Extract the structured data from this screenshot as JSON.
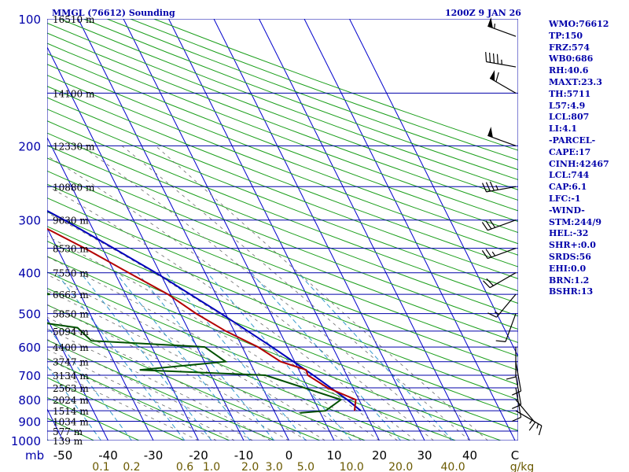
{
  "header": {
    "title": "MMGL (76612) Sounding",
    "valid_time": "1200Z  9 JAN 26"
  },
  "indices": [
    "WMO:76612",
    "TP:150",
    "FRZ:574",
    "WB0:686",
    "RH:40.6",
    "MAXT:23.3",
    "TH:5711",
    "L57:4.9",
    "LCL:807",
    "LI:4.1",
    "-PARCEL-",
    "CAPE:17",
    "CINH:42467",
    "LCL:744",
    "CAP:6.1",
    "LFC:-1",
    "-WIND-",
    "STM:244/9",
    "HEL:-32",
    "SHR+:0.0",
    "SRDS:56",
    "EHI:0.0",
    "BRN:1.2",
    "BSHR:13"
  ],
  "colors": {
    "isobar": "#0000aa",
    "isotherm": "#0000cc",
    "dry_adiabat": "#1a9e1a",
    "moist_adiabat": "#6a6a6a",
    "mixing_ratio": "#3399cc",
    "temperature": "#b30000",
    "dewpoint": "#005000",
    "parcel": "#0000bb",
    "wind": "#000000"
  },
  "chart_data": {
    "type": "skew-t",
    "title": "MMGL (76612) Sounding",
    "pressure_levels_hPa": [
      100,
      200,
      300,
      400,
      500,
      600,
      700,
      800,
      900,
      1000
    ],
    "pressure_labels": [
      "100",
      "200",
      "300",
      "400",
      "500",
      "600",
      "700",
      "800",
      "900",
      "1000"
    ],
    "pressure_unit_label": "mb",
    "temperature_ticks_C": [
      -50,
      -40,
      -30,
      -20,
      -10,
      0,
      10,
      20,
      30,
      40,
      50
    ],
    "temperature_tick_labels": [
      "-50",
      "-40",
      "-30",
      "-20",
      "-10",
      "0",
      "10",
      "20",
      "30",
      "40",
      "C"
    ],
    "mixing_ratio_ticks": [
      "0.1",
      "0.2",
      "0.6",
      "1.0",
      "2.0",
      "3.0",
      "5.0",
      "10.0",
      "20.0",
      "40.0"
    ],
    "mixing_ratio_unit": "g/kg",
    "height_labels": [
      {
        "p": 100,
        "text": "16510 m"
      },
      {
        "p": 150,
        "text": "14100 m"
      },
      {
        "p": 200,
        "text": "12330 m"
      },
      {
        "p": 250,
        "text": "10880 m"
      },
      {
        "p": 300,
        "text": "9630 m"
      },
      {
        "p": 350,
        "text": "8530 m"
      },
      {
        "p": 400,
        "text": "7550 m"
      },
      {
        "p": 450,
        "text": "6663 m"
      },
      {
        "p": 500,
        "text": "5850 m"
      },
      {
        "p": 550,
        "text": "5094 m"
      },
      {
        "p": 600,
        "text": "4400 m"
      },
      {
        "p": 650,
        "text": "3747 m"
      },
      {
        "p": 700,
        "text": "3134 m"
      },
      {
        "p": 750,
        "text": "2563 m"
      },
      {
        "p": 800,
        "text": "2024 m"
      },
      {
        "p": 850,
        "text": "1514 m"
      },
      {
        "p": 900,
        "text": "1034 m"
      },
      {
        "p": 950,
        "text": "577 m"
      },
      {
        "p": 1000,
        "text": "139 m"
      }
    ],
    "temperature_profile": [
      {
        "p": 100,
        "t": -71.4
      },
      {
        "p": 120,
        "t": -71.8
      },
      {
        "p": 150,
        "t": -76.4
      },
      {
        "p": 170,
        "t": -67.6
      },
      {
        "p": 200,
        "t": -58.4
      },
      {
        "p": 230,
        "t": -49.8
      },
      {
        "p": 250,
        "t": -45.5
      },
      {
        "p": 280,
        "t": -38.4
      },
      {
        "p": 300,
        "t": -32.9
      },
      {
        "p": 350,
        "t": -23.9
      },
      {
        "p": 400,
        "t": -16.9
      },
      {
        "p": 450,
        "t": -10.6
      },
      {
        "p": 500,
        "t": -6.5
      },
      {
        "p": 550,
        "t": -1.9
      },
      {
        "p": 600,
        "t": 3.5
      },
      {
        "p": 650,
        "t": 6.9
      },
      {
        "p": 680,
        "t": 11.6
      },
      {
        "p": 700,
        "t": 11.4
      },
      {
        "p": 750,
        "t": 14.4
      },
      {
        "p": 800,
        "t": 19.3
      },
      {
        "p": 850,
        "t": 17.8
      }
    ],
    "dewpoint_profile": [
      {
        "p": 100,
        "td": -112.7
      },
      {
        "p": 150,
        "td": -128.2
      },
      {
        "p": 170,
        "td": -123.5
      },
      {
        "p": 200,
        "td": -114.9
      },
      {
        "p": 220,
        "td": -103.2
      },
      {
        "p": 250,
        "td": -101.6
      },
      {
        "p": 280,
        "td": -85.2
      },
      {
        "p": 300,
        "td": -78.6
      },
      {
        "p": 320,
        "td": -70.9
      },
      {
        "p": 350,
        "td": -61.4
      },
      {
        "p": 370,
        "td": -44.2
      },
      {
        "p": 400,
        "td": -56.2
      },
      {
        "p": 420,
        "td": -44.3
      },
      {
        "p": 450,
        "td": -36.7
      },
      {
        "p": 460,
        "td": -60.9
      },
      {
        "p": 500,
        "td": -66.7
      },
      {
        "p": 520,
        "td": -44.4
      },
      {
        "p": 540,
        "td": -34.3
      },
      {
        "p": 580,
        "td": -32.7
      },
      {
        "p": 600,
        "td": -8.3
      },
      {
        "p": 650,
        "td": -5.3
      },
      {
        "p": 680,
        "td": -25.2
      },
      {
        "p": 700,
        "td": 2.0
      },
      {
        "p": 800,
        "td": 16.0
      },
      {
        "p": 850,
        "td": 11.4
      },
      {
        "p": 860,
        "td": 5.5
      }
    ],
    "parcel_profile": [
      {
        "p": 850,
        "t": 19.2
      },
      {
        "p": 800,
        "t": 17.4
      },
      {
        "p": 700,
        "t": 12.6
      },
      {
        "p": 600,
        "t": 6.6
      },
      {
        "p": 500,
        "t": -1.0
      },
      {
        "p": 400,
        "t": -10.9
      },
      {
        "p": 350,
        "t": -17.5
      },
      {
        "p": 300,
        "t": -25.3
      },
      {
        "p": 250,
        "t": -35.4
      },
      {
        "p": 200,
        "t": -48.0
      },
      {
        "p": 150,
        "t": -63.0
      },
      {
        "p": 125,
        "t": -71.6
      }
    ],
    "wind_barbs": [
      {
        "p": 110,
        "dir": 290,
        "spd": 55
      },
      {
        "p": 130,
        "dir": 280,
        "spd": 45
      },
      {
        "p": 150,
        "dir": 300,
        "spd": 60
      },
      {
        "p": 200,
        "dir": 290,
        "spd": 50
      },
      {
        "p": 250,
        "dir": 260,
        "spd": 35
      },
      {
        "p": 300,
        "dir": 250,
        "spd": 30
      },
      {
        "p": 350,
        "dir": 250,
        "spd": 25
      },
      {
        "p": 400,
        "dir": 240,
        "spd": 20
      },
      {
        "p": 450,
        "dir": 220,
        "spd": 15
      },
      {
        "p": 500,
        "dir": 200,
        "spd": 10
      },
      {
        "p": 600,
        "dir": 180,
        "spd": 10
      },
      {
        "p": 650,
        "dir": 170,
        "spd": 10
      },
      {
        "p": 700,
        "dir": 170,
        "spd": 10
      },
      {
        "p": 750,
        "dir": 170,
        "spd": 10
      },
      {
        "p": 800,
        "dir": 140,
        "spd": 15
      },
      {
        "p": 850,
        "dir": 120,
        "spd": 15
      }
    ],
    "grid": true
  }
}
